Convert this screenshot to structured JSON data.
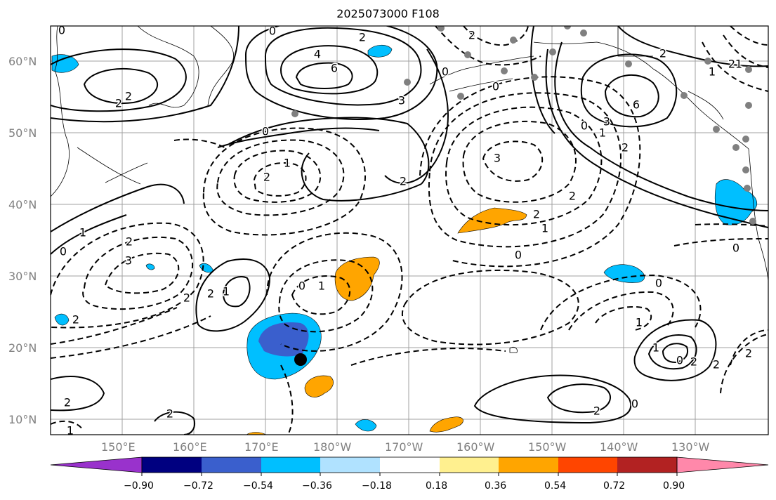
{
  "title": "2025073000 F108",
  "map": {
    "lat_ticks": [
      "60°N",
      "50°N",
      "40°N",
      "30°N",
      "20°N",
      "10°N"
    ],
    "lon_ticks": [
      "150°E",
      "160°E",
      "170°E",
      "180°W",
      "170°W",
      "160°W",
      "150°W",
      "140°W",
      "130°W"
    ],
    "contour_labels": [
      "0",
      "2",
      "4",
      "6",
      "2",
      "3",
      "2",
      "0",
      "2",
      "1",
      "2",
      "1",
      "0",
      "2",
      "2",
      "6",
      "3",
      "1",
      "2",
      "0",
      "2",
      "0",
      "3",
      "2",
      "1",
      "0",
      "2",
      "1",
      "3",
      "2",
      "2",
      "2",
      "1",
      "0",
      "1",
      "2",
      "2",
      "1",
      "0",
      "1",
      "2",
      "0",
      "2",
      "2",
      "0",
      "2",
      "1",
      "1",
      "0",
      "2",
      "0",
      "0"
    ],
    "marker": {
      "label": "storm-center"
    },
    "colors": {
      "positive": "#ffa500",
      "negative_light": "#00bfff",
      "negative_dark": "#3a5fcd",
      "station_dots": "#808080"
    }
  },
  "colorbar": {
    "ticks": [
      "−0.90",
      "−0.72",
      "−0.54",
      "−0.36",
      "−0.18",
      "0.18",
      "0.36",
      "0.54",
      "0.72",
      "0.90"
    ],
    "colors": [
      "#9932cc",
      "#000080",
      "#3a5fcd",
      "#00bfff",
      "#b0e2ff",
      "#ffffff",
      "#fff08f",
      "#ffa500",
      "#ff4500",
      "#b22222",
      "#ff88aa"
    ]
  }
}
